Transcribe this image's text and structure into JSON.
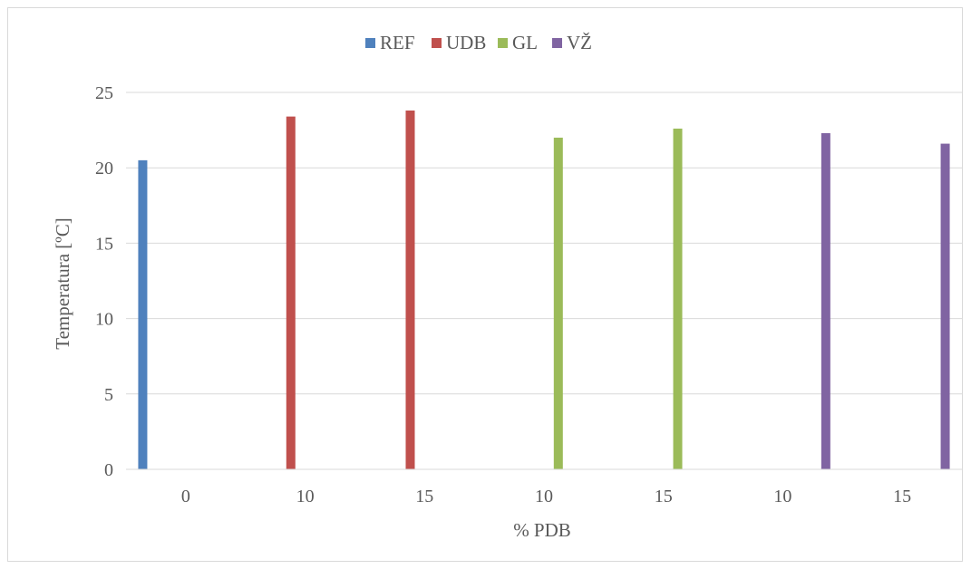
{
  "chart_data": {
    "type": "bar",
    "xlabel": "% PDB",
    "ylabel": "Temperatura [ºC]",
    "ylim": [
      0,
      25
    ],
    "yticks": [
      0,
      5,
      10,
      15,
      20,
      25
    ],
    "grid": true,
    "legend_position": "top",
    "categories": [
      "0",
      "10",
      "15",
      "10",
      "15",
      "10",
      "15"
    ],
    "series": [
      {
        "name": "REF",
        "color": "#4f81bd",
        "values": [
          20.5,
          null,
          null,
          null,
          null,
          null,
          null
        ]
      },
      {
        "name": "UDB",
        "color": "#c0504d",
        "values": [
          null,
          23.4,
          23.8,
          null,
          null,
          null,
          null
        ]
      },
      {
        "name": "GL",
        "color": "#9bbb59",
        "values": [
          null,
          null,
          null,
          22.0,
          22.6,
          null,
          null
        ]
      },
      {
        "name": "VŽ",
        "color": "#8064a2",
        "values": [
          null,
          null,
          null,
          null,
          null,
          22.3,
          21.6
        ]
      }
    ]
  }
}
